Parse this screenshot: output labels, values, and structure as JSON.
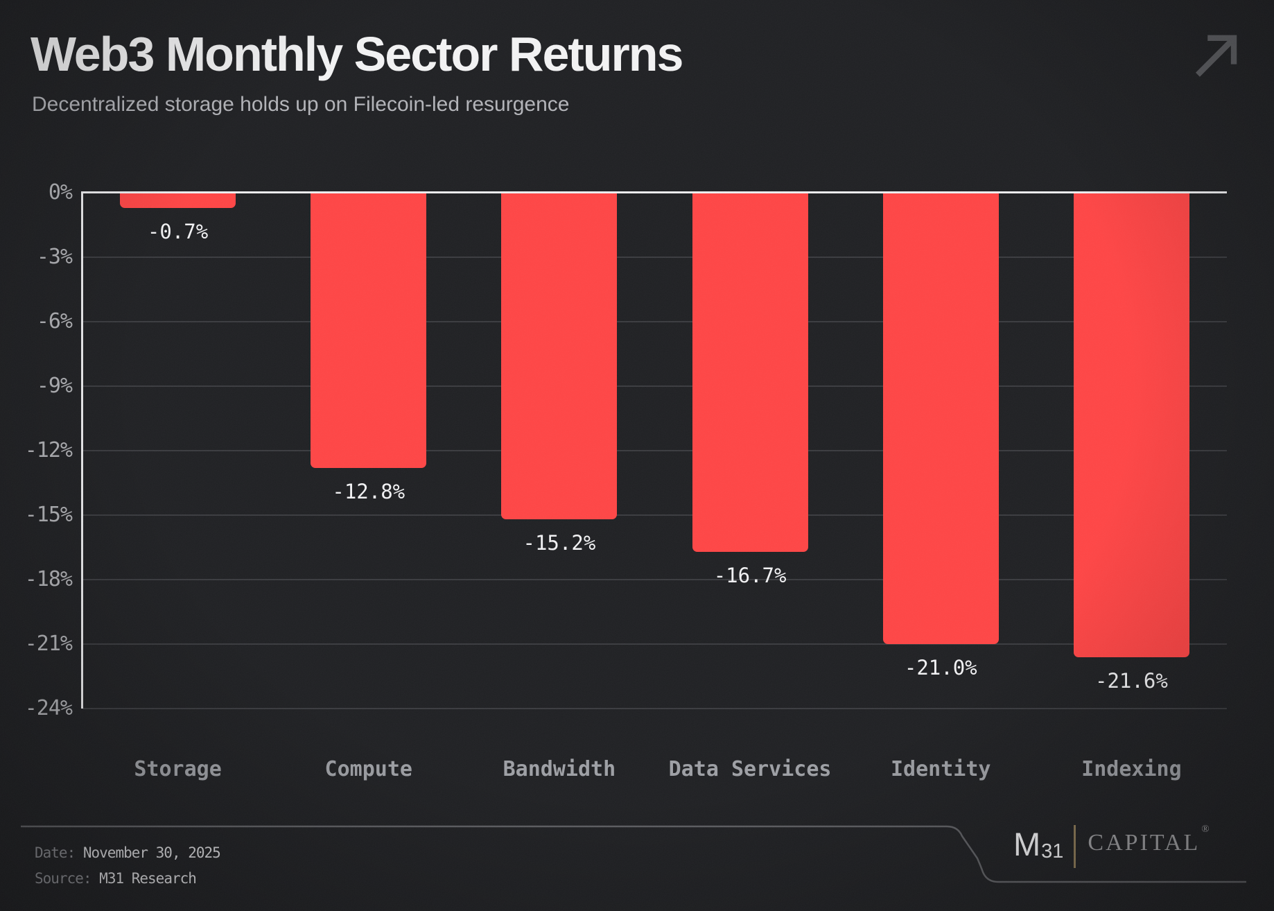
{
  "header": {
    "title": "Web3 Monthly Sector Returns",
    "subtitle": "Decentralized storage holds up on Filecoin-led resurgence"
  },
  "chart_data": {
    "type": "bar",
    "title": "Web3 Monthly Sector Returns",
    "subtitle": "Decentralized storage holds up on Filecoin-led resurgence",
    "categories": [
      "Storage",
      "Compute",
      "Bandwidth",
      "Data Services",
      "Identity",
      "Indexing"
    ],
    "values": [
      -0.7,
      -12.8,
      -15.2,
      -16.7,
      -21.0,
      -21.6
    ],
    "data_labels": [
      "-0.7%",
      "-12.8%",
      "-15.2%",
      "-16.7%",
      "-21.0%",
      "-21.6%"
    ],
    "y_ticks": [
      "0%",
      "-3%",
      "-6%",
      "-9%",
      "-12%",
      "-15%",
      "-18%",
      "-21%",
      "-24%"
    ],
    "y_tick_values": [
      0,
      -3,
      -6,
      -9,
      -12,
      -15,
      -18,
      -21,
      -24
    ],
    "ylim": [
      -24,
      0
    ],
    "xlabel": "",
    "ylabel": "",
    "grid": true,
    "legend": false,
    "bar_color": "#FF4646",
    "background_color": "#202124",
    "gridline_color": "#3B3C40",
    "axis_color": "#EDEDEF",
    "data_label_color": "#F2F2F4",
    "tick_label_color": "#B2B3B7",
    "category_label_color": "#9EA0A5"
  },
  "footer": {
    "date_label": "Date:",
    "date_value": "November 30, 2025",
    "source_label": "Source:",
    "source_value": "M31 Research",
    "logo": {
      "m": "M",
      "sub": "31",
      "name": "CAPITAL",
      "registered": "®"
    }
  }
}
